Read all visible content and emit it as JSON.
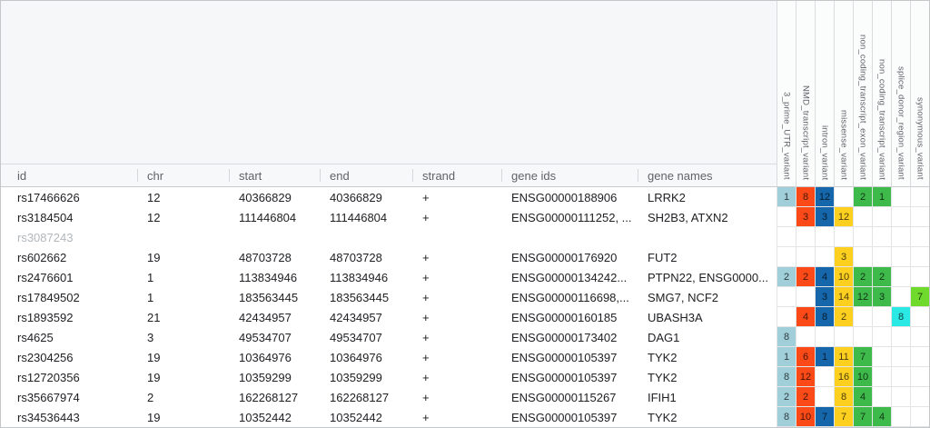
{
  "table": {
    "columns": [
      {
        "key": "id",
        "label": "id"
      },
      {
        "key": "chr",
        "label": "chr"
      },
      {
        "key": "start",
        "label": "start"
      },
      {
        "key": "end",
        "label": "end"
      },
      {
        "key": "strand",
        "label": "strand"
      },
      {
        "key": "gene_ids",
        "label": "gene ids"
      },
      {
        "key": "gene_names",
        "label": "gene names"
      }
    ],
    "variant_columns": [
      {
        "label": "3_prime_UTR_variant",
        "color": "#a0ced9"
      },
      {
        "label": "NMD_transcript_variant",
        "color": "#fb4a17"
      },
      {
        "label": "intron_variant",
        "color": "#1566ab"
      },
      {
        "label": "missense_variant",
        "color": "#fdd020"
      },
      {
        "label": "non_coding_transcript_exon_variant",
        "color": "#3eba4b"
      },
      {
        "label": "non_coding_transcript_variant",
        "color": "#3eba4b"
      },
      {
        "label": "splice_donor_region_variant",
        "color": "#2ae8e4"
      },
      {
        "label": "synonymous_variant",
        "color": "#6fd92c"
      }
    ],
    "rows": [
      {
        "id": "rs17466626",
        "chr": "12",
        "start": "40366829",
        "end": "40366829",
        "strand": "+",
        "gene_ids": "ENSG00000188906",
        "gene_names": "LRRK2",
        "muted": false,
        "counts": [
          1,
          8,
          12,
          null,
          2,
          1,
          null,
          null
        ]
      },
      {
        "id": "rs3184504",
        "chr": "12",
        "start": "111446804",
        "end": "111446804",
        "strand": "+",
        "gene_ids": "ENSG00000111252, ...",
        "gene_names": "SH2B3, ATXN2",
        "muted": false,
        "counts": [
          null,
          3,
          3,
          12,
          null,
          null,
          null,
          null
        ]
      },
      {
        "id": "rs3087243",
        "chr": "",
        "start": "",
        "end": "",
        "strand": "",
        "gene_ids": "",
        "gene_names": "",
        "muted": true,
        "counts": [
          null,
          null,
          null,
          null,
          null,
          null,
          null,
          null
        ]
      },
      {
        "id": "rs602662",
        "chr": "19",
        "start": "48703728",
        "end": "48703728",
        "strand": "+",
        "gene_ids": "ENSG00000176920",
        "gene_names": "FUT2",
        "muted": false,
        "counts": [
          null,
          null,
          null,
          3,
          null,
          null,
          null,
          null
        ]
      },
      {
        "id": "rs2476601",
        "chr": "1",
        "start": "113834946",
        "end": "113834946",
        "strand": "+",
        "gene_ids": "ENSG00000134242...",
        "gene_names": "PTPN22, ENSG0000...",
        "muted": false,
        "counts": [
          2,
          2,
          4,
          10,
          2,
          2,
          null,
          null
        ]
      },
      {
        "id": "rs17849502",
        "chr": "1",
        "start": "183563445",
        "end": "183563445",
        "strand": "+",
        "gene_ids": "ENSG00000116698,...",
        "gene_names": "SMG7, NCF2",
        "muted": false,
        "counts": [
          null,
          null,
          3,
          14,
          12,
          3,
          null,
          7
        ]
      },
      {
        "id": "rs1893592",
        "chr": "21",
        "start": "42434957",
        "end": "42434957",
        "strand": "+",
        "gene_ids": "ENSG00000160185",
        "gene_names": "UBASH3A",
        "muted": false,
        "counts": [
          null,
          4,
          8,
          2,
          null,
          null,
          8,
          null
        ]
      },
      {
        "id": "rs4625",
        "chr": "3",
        "start": "49534707",
        "end": "49534707",
        "strand": "+",
        "gene_ids": "ENSG00000173402",
        "gene_names": "DAG1",
        "muted": false,
        "counts": [
          8,
          null,
          null,
          null,
          null,
          null,
          null,
          null
        ]
      },
      {
        "id": "rs2304256",
        "chr": "19",
        "start": "10364976",
        "end": "10364976",
        "strand": "+",
        "gene_ids": "ENSG00000105397",
        "gene_names": "TYK2",
        "muted": false,
        "counts": [
          1,
          6,
          1,
          11,
          7,
          null,
          null,
          null
        ]
      },
      {
        "id": "rs12720356",
        "chr": "19",
        "start": "10359299",
        "end": "10359299",
        "strand": "+",
        "gene_ids": "ENSG00000105397",
        "gene_names": "TYK2",
        "muted": false,
        "counts": [
          8,
          12,
          null,
          16,
          10,
          null,
          null,
          null
        ]
      },
      {
        "id": "rs35667974",
        "chr": "2",
        "start": "162268127",
        "end": "162268127",
        "strand": "+",
        "gene_ids": "ENSG00000115267",
        "gene_names": "IFIH1",
        "muted": false,
        "counts": [
          2,
          2,
          null,
          8,
          4,
          null,
          null,
          null
        ]
      },
      {
        "id": "rs34536443",
        "chr": "19",
        "start": "10352442",
        "end": "10352442",
        "strand": "+",
        "gene_ids": "ENSG00000105397",
        "gene_names": "TYK2",
        "muted": false,
        "counts": [
          8,
          10,
          7,
          7,
          7,
          4,
          null,
          null
        ]
      }
    ]
  }
}
